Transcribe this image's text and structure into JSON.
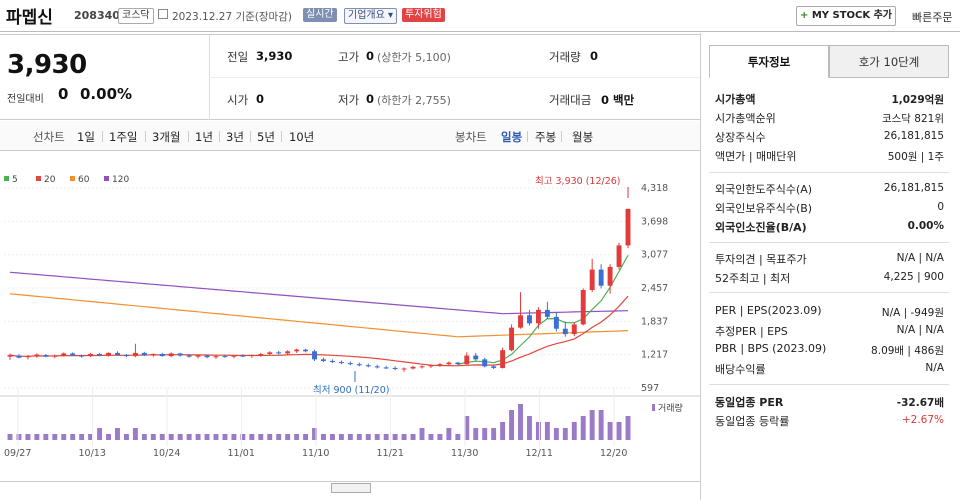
{
  "header": {
    "stock_name": "파멥신",
    "stock_code": "208340",
    "market_tag": "코스닥",
    "base_date": "2023.12.27 기준(장마감)",
    "live_tag": "실시간",
    "company_tag": "기업개요 ▾",
    "risk_tag": "투자위험",
    "mystock_label": "MY STOCK 추가",
    "quick_order_label": "빠른주문"
  },
  "quote": {
    "current_price": "3,930",
    "change_label": "전일대비",
    "change_value": "0",
    "change_pct": "0.00%",
    "prev_close_label": "전일",
    "prev_close": "3,930",
    "high_label": "고가",
    "high": "0",
    "upper_limit": "(상한가 5,100)",
    "volume_label": "거래량",
    "volume": "0",
    "open_label": "시가",
    "open": "0",
    "low_label": "저가",
    "low": "0",
    "lower_limit": "(하한가 2,755)",
    "amount_label": "거래대금",
    "amount": "0 백만"
  },
  "period_tabs": {
    "line_title": "선차트",
    "line": [
      "1일",
      "1주일",
      "3개월",
      "1년",
      "3년",
      "5년",
      "10년"
    ],
    "candle_title": "봉차트",
    "candle": [
      "일봉",
      "주봉",
      "월봉"
    ],
    "active": "일봉"
  },
  "chart_data": {
    "type": "candlestick",
    "ma_legend": [
      {
        "name": "5",
        "color": "#4caf50"
      },
      {
        "name": "20",
        "color": "#e0483c"
      },
      {
        "name": "60",
        "color": "#f0902e"
      },
      {
        "name": "120",
        "color": "#9050c0"
      }
    ],
    "y_ticks": [
      "4,318",
      "3,698",
      "3,077",
      "2,457",
      "1,837",
      "1,217",
      "597"
    ],
    "ylim": [
      597,
      4318
    ],
    "x_ticks": [
      "09/27",
      "10/13",
      "10/24",
      "11/01",
      "11/10",
      "11/21",
      "11/30",
      "12/11",
      "12/20"
    ],
    "annotation_high": "최고 3,930 (12/26)",
    "annotation_low": "최저 900 (11/20)",
    "volume_legend": "거래량",
    "candles": [
      [
        1180,
        1240,
        1120,
        1210
      ],
      [
        1200,
        1230,
        1150,
        1160
      ],
      [
        1170,
        1210,
        1130,
        1190
      ],
      [
        1190,
        1240,
        1160,
        1220
      ],
      [
        1210,
        1230,
        1170,
        1180
      ],
      [
        1180,
        1220,
        1150,
        1200
      ],
      [
        1200,
        1260,
        1180,
        1240
      ],
      [
        1240,
        1260,
        1190,
        1200
      ],
      [
        1200,
        1220,
        1160,
        1190
      ],
      [
        1190,
        1250,
        1170,
        1230
      ],
      [
        1230,
        1250,
        1190,
        1200
      ],
      [
        1200,
        1260,
        1180,
        1250
      ],
      [
        1250,
        1280,
        1200,
        1210
      ],
      [
        1210,
        1230,
        1170,
        1190
      ],
      [
        1190,
        1420,
        1170,
        1250
      ],
      [
        1250,
        1270,
        1190,
        1210
      ],
      [
        1210,
        1240,
        1180,
        1230
      ],
      [
        1230,
        1250,
        1180,
        1190
      ],
      [
        1190,
        1260,
        1170,
        1240
      ],
      [
        1240,
        1250,
        1180,
        1200
      ],
      [
        1200,
        1230,
        1160,
        1180
      ],
      [
        1180,
        1210,
        1150,
        1200
      ],
      [
        1200,
        1220,
        1150,
        1170
      ],
      [
        1170,
        1210,
        1140,
        1190
      ],
      [
        1190,
        1220,
        1160,
        1180
      ],
      [
        1180,
        1210,
        1150,
        1200
      ],
      [
        1200,
        1230,
        1170,
        1190
      ],
      [
        1190,
        1220,
        1160,
        1210
      ],
      [
        1210,
        1250,
        1180,
        1230
      ],
      [
        1230,
        1280,
        1200,
        1260
      ],
      [
        1260,
        1290,
        1220,
        1240
      ],
      [
        1240,
        1300,
        1220,
        1280
      ],
      [
        1280,
        1330,
        1250,
        1310
      ],
      [
        1310,
        1330,
        1260,
        1280
      ],
      [
        1280,
        1310,
        1100,
        1130
      ],
      [
        1130,
        1160,
        1080,
        1100
      ],
      [
        1100,
        1130,
        1060,
        1080
      ],
      [
        1080,
        1110,
        1040,
        1060
      ],
      [
        1060,
        1090,
        1020,
        1040
      ],
      [
        1040,
        1070,
        1000,
        1020
      ],
      [
        1020,
        1050,
        980,
        1000
      ],
      [
        1000,
        1030,
        960,
        980
      ],
      [
        980,
        1010,
        950,
        970
      ],
      [
        970,
        1000,
        930,
        950
      ],
      [
        950,
        980,
        900,
        960
      ],
      [
        960,
        1010,
        940,
        990
      ],
      [
        990,
        1020,
        960,
        1000
      ],
      [
        1000,
        1040,
        970,
        1020
      ],
      [
        1020,
        1060,
        990,
        1040
      ],
      [
        1040,
        1090,
        1010,
        1070
      ],
      [
        1070,
        1080,
        1020,
        1040
      ],
      [
        1040,
        1260,
        1030,
        1200
      ],
      [
        1200,
        1250,
        1100,
        1130
      ],
      [
        1130,
        1160,
        980,
        1000
      ],
      [
        1000,
        1030,
        950,
        970
      ],
      [
        970,
        1350,
        960,
        1300
      ],
      [
        1300,
        1780,
        1280,
        1720
      ],
      [
        1720,
        2380,
        1700,
        1950
      ],
      [
        1950,
        2050,
        1760,
        1800
      ],
      [
        1800,
        2100,
        1700,
        2050
      ],
      [
        2050,
        2200,
        1880,
        1920
      ],
      [
        1920,
        2010,
        1650,
        1700
      ],
      [
        1700,
        1830,
        1550,
        1600
      ],
      [
        1600,
        1820,
        1560,
        1780
      ],
      [
        1780,
        2450,
        1760,
        2420
      ],
      [
        2420,
        3000,
        2380,
        2800
      ],
      [
        2800,
        2900,
        2450,
        2500
      ],
      [
        2500,
        2900,
        2350,
        2850
      ],
      [
        2850,
        3300,
        2800,
        3250
      ],
      [
        3250,
        3930,
        3200,
        3930
      ]
    ],
    "volumes": [
      1,
      1,
      1,
      1,
      1,
      1,
      1,
      1,
      1,
      1,
      2,
      1,
      2,
      1,
      2,
      1,
      1,
      1,
      1,
      1,
      1,
      1,
      1,
      1,
      1,
      1,
      1,
      1,
      1,
      1,
      1,
      1,
      1,
      1,
      2,
      1,
      1,
      1,
      1,
      1,
      1,
      1,
      1,
      1,
      1,
      1,
      2,
      1,
      1,
      2,
      1,
      4,
      2,
      2,
      2,
      3,
      5,
      6,
      4,
      3,
      3,
      2,
      2,
      3,
      4,
      5,
      5,
      3,
      3,
      4
    ]
  },
  "invest_panel": {
    "tab_info": "투자정보",
    "tab_hoga": "호가 10단계",
    "rows": [
      {
        "label": "시가총액",
        "value": "1,029억원",
        "bold": true
      },
      {
        "label": "시가총액순위",
        "value": "코스닥 821위"
      },
      {
        "label": "상장주식수",
        "value": "26,181,815"
      },
      {
        "label": "액면가 | 매매단위",
        "value": "500원 | 1주"
      },
      {
        "label": "외국인한도주식수(A)",
        "value": "26,181,815"
      },
      {
        "label": "외국인보유주식수(B)",
        "value": "0"
      },
      {
        "label": "외국인소진율(B/A)",
        "value": "0.00%",
        "bold": true
      },
      {
        "label": "투자의견 | 목표주가",
        "value": "N/A | N/A"
      },
      {
        "label": "52주최고 | 최저",
        "value": "4,225 | 900"
      },
      {
        "label": "PER | EPS(2023.09)",
        "value": "N/A | -949원"
      },
      {
        "label": "추정PER | EPS",
        "value": "N/A | N/A"
      },
      {
        "label": "PBR | BPS (2023.09)",
        "value": "8.09배 | 486원"
      },
      {
        "label": "배당수익률",
        "value": "N/A"
      },
      {
        "label": "동일업종 PER",
        "value": "-32.67배",
        "bold": true
      },
      {
        "label": "동일업종 등락률",
        "value": "+2.67%",
        "red": true
      }
    ]
  }
}
